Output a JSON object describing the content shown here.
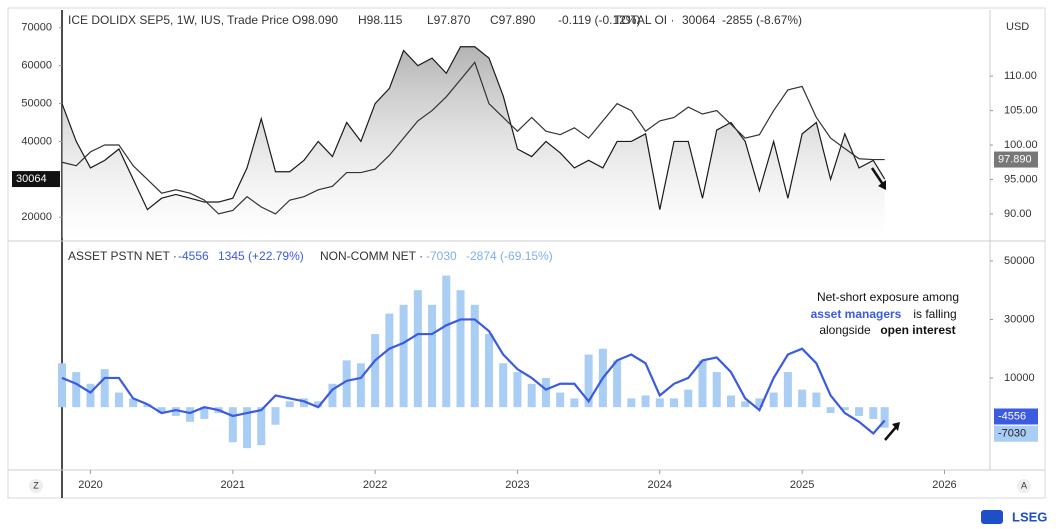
{
  "chart_data": [
    {
      "type": "line",
      "header": "ICE DOLIDX SEP5, 1W, IUS, Trade Price",
      "open": "O98.090",
      "high": "H98.115",
      "low": "L97.870",
      "close": "C97.890",
      "change": "-0.119 (-0.12%)",
      "oi_header": "TOTAL OI ·",
      "oi_change": "-2855 (-8.67%)",
      "currency": "USD",
      "x": [
        2019.8,
        2019.9,
        2020.0,
        2020.1,
        2020.2,
        2020.3,
        2020.4,
        2020.5,
        2020.6,
        2020.7,
        2020.8,
        2020.9,
        2021.0,
        2021.1,
        2021.2,
        2021.3,
        2021.4,
        2021.5,
        2021.6,
        2021.7,
        2021.8,
        2021.9,
        2022.0,
        2022.1,
        2022.2,
        2022.3,
        2022.4,
        2022.5,
        2022.6,
        2022.7,
        2022.8,
        2022.9,
        2023.0,
        2023.1,
        2023.2,
        2023.3,
        2023.4,
        2023.5,
        2023.6,
        2023.7,
        2023.8,
        2023.9,
        2024.0,
        2024.1,
        2024.2,
        2024.3,
        2024.4,
        2024.5,
        2024.6,
        2024.7,
        2024.8,
        2024.9,
        2025.0,
        2025.1,
        2025.2,
        2025.3,
        2025.4,
        2025.5,
        2025.58
      ],
      "series": [
        {
          "name": "TOTAL OI",
          "mark": "area",
          "axis": "y",
          "color": "#1a1a1a",
          "values": [
            50000,
            40000,
            33000,
            35000,
            38000,
            30000,
            22000,
            25000,
            26000,
            25000,
            24000,
            24000,
            25000,
            33000,
            46000,
            32000,
            32000,
            35000,
            40000,
            36000,
            45000,
            40000,
            50000,
            54000,
            64000,
            60000,
            62000,
            58000,
            65000,
            65000,
            62000,
            52000,
            38000,
            36000,
            40000,
            37000,
            33000,
            35000,
            33000,
            40000,
            40000,
            42000,
            22000,
            40000,
            40000,
            25000,
            43000,
            45000,
            40000,
            27000,
            40000,
            25000,
            42000,
            45000,
            30000,
            42000,
            33000,
            35000,
            30064
          ]
        },
        {
          "name": "Trade Price",
          "mark": "line",
          "axis": "y2",
          "color": "#333333",
          "last_label": "97.890",
          "values": [
            97.5,
            97,
            99,
            100,
            100,
            97,
            95,
            93,
            93.5,
            93,
            92,
            90,
            90.5,
            92.5,
            91,
            90,
            92,
            92.5,
            93.5,
            94,
            96,
            96,
            96.5,
            98.5,
            101,
            103.5,
            105,
            107,
            109.5,
            112,
            106,
            104,
            102,
            104,
            102,
            101.5,
            102.5,
            101,
            103.5,
            106,
            105,
            102,
            103.5,
            104,
            105.5,
            104.5,
            105,
            103,
            101,
            101.5,
            105,
            108,
            108.5,
            104,
            101,
            99.5,
            98,
            97.89,
            97.89
          ]
        }
      ],
      "ylim": [
        14500,
        74700
      ],
      "yticks": [
        20000,
        40000,
        50000,
        60000,
        70000
      ],
      "y2lim": [
        86.5,
        119.6
      ],
      "y2ticks": [
        {
          "value": 90,
          "label": "90.00"
        },
        {
          "value": 95,
          "label": "95.000"
        },
        {
          "value": 100,
          "label": "100.00"
        },
        {
          "value": 105,
          "label": "105.00"
        },
        {
          "value": 110,
          "label": "110.00"
        }
      ]
    },
    {
      "type": "bar",
      "am_header": "ASSET PSTN NET ·",
      "am_change": "1345 (+22.79%)",
      "nc_header": "NON-COMM NET ·",
      "nc_change": "-2874 (-69.15%)",
      "annotation": {
        "line1": "Net-short exposure among",
        "emph1": "asset managers",
        "mid": "is falling",
        "line3": "alongside",
        "emph2": "open interest"
      },
      "x": [
        2019.8,
        2019.9,
        2020.0,
        2020.1,
        2020.2,
        2020.3,
        2020.4,
        2020.5,
        2020.6,
        2020.7,
        2020.8,
        2020.9,
        2021.0,
        2021.1,
        2021.2,
        2021.3,
        2021.4,
        2021.5,
        2021.6,
        2021.7,
        2021.8,
        2021.9,
        2022.0,
        2022.1,
        2022.2,
        2022.3,
        2022.4,
        2022.5,
        2022.6,
        2022.7,
        2022.8,
        2022.9,
        2023.0,
        2023.1,
        2023.2,
        2023.3,
        2023.4,
        2023.5,
        2023.6,
        2023.7,
        2023.8,
        2023.9,
        2024.0,
        2024.1,
        2024.2,
        2024.3,
        2024.4,
        2024.5,
        2024.6,
        2024.7,
        2024.8,
        2024.9,
        2025.0,
        2025.1,
        2025.2,
        2025.3,
        2025.4,
        2025.5,
        2025.58
      ],
      "series": [
        {
          "name": "NON-COMM NET",
          "mark": "bar",
          "color": "#a9cdf3",
          "label_color": "#7fb0ea",
          "values": [
            15000,
            12000,
            8000,
            13000,
            5000,
            3000,
            1000,
            -2000,
            -3000,
            -5000,
            -4000,
            -2000,
            -12000,
            -14000,
            -13000,
            -6000,
            2000,
            3000,
            2000,
            8000,
            16000,
            15000,
            25000,
            32000,
            35000,
            40000,
            35000,
            45000,
            40000,
            35000,
            25000,
            15000,
            12000,
            8000,
            10000,
            5000,
            3000,
            18000,
            20000,
            16000,
            3000,
            4000,
            3000,
            3000,
            6000,
            16000,
            12000,
            4000,
            2000,
            3000,
            5000,
            12000,
            6000,
            5000,
            -2000,
            -1000,
            -3000,
            -4000,
            -7030
          ]
        },
        {
          "name": "ASSET PSTN NET",
          "mark": "line",
          "color": "#3b5be0",
          "label_color": "#3b5be0",
          "values": [
            10000,
            8000,
            5000,
            10000,
            10000,
            3000,
            1000,
            -2000,
            -1000,
            -2000,
            0,
            -1000,
            -3000,
            -2000,
            -1000,
            4000,
            3000,
            2000,
            0,
            6000,
            9000,
            10000,
            16000,
            20000,
            22000,
            25000,
            25000,
            28000,
            30000,
            30000,
            26000,
            18000,
            13000,
            10000,
            6000,
            8000,
            8000,
            2000,
            10000,
            16000,
            18000,
            15000,
            4000,
            8000,
            10000,
            16000,
            17000,
            12000,
            3000,
            -1000,
            10000,
            18000,
            20000,
            15000,
            4000,
            -2000,
            -5000,
            -9000,
            -4556
          ]
        }
      ],
      "ylim": [
        -20800,
        55800
      ],
      "yticks": [
        10000,
        30000,
        50000
      ],
      "xlim": [
        2019.8,
        2026.32
      ],
      "xticks": [
        2020,
        2021,
        2022,
        2023,
        2024,
        2025,
        2026
      ],
      "corner_left": "Z",
      "corner_right": "A",
      "brand": "LSEG"
    }
  ]
}
